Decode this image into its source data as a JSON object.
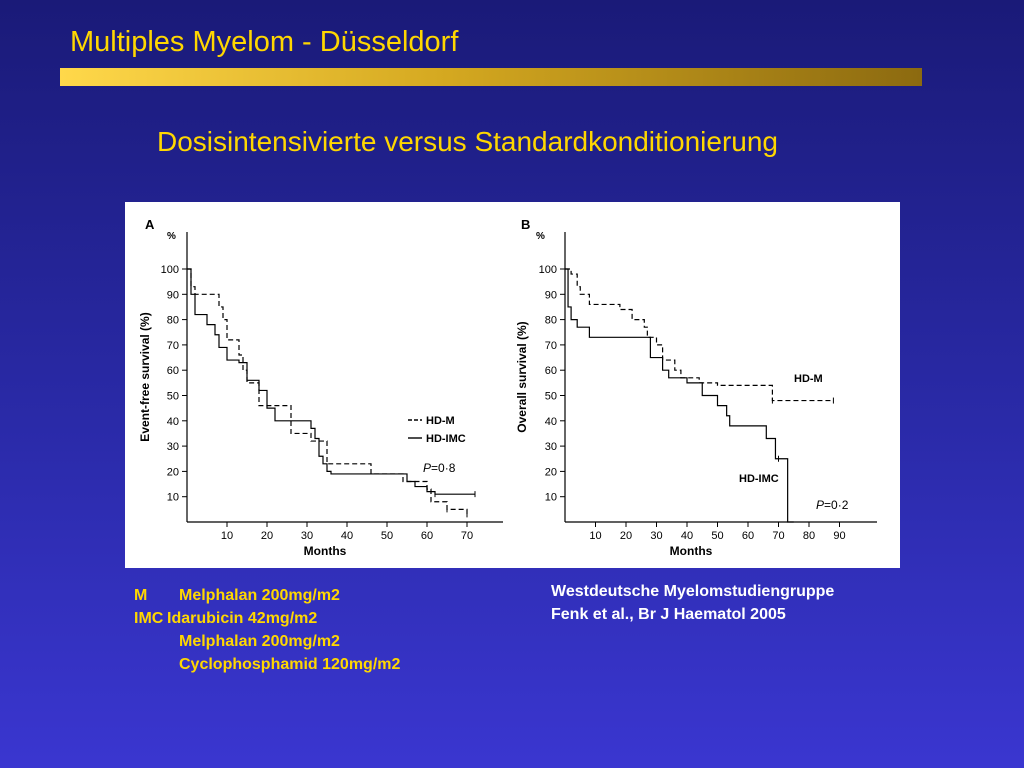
{
  "slide": {
    "title": "Multiples Myelom - Düsseldorf",
    "subtitle": "Dosisintensivierte versus Standardkonditionierung",
    "title_color": "#ffd700",
    "background_color": "#2a2aa8",
    "abbreviations": [
      {
        "key": "M",
        "text": "Melphalan 200mg/m2"
      },
      {
        "key": "IMC",
        "text": "Idarubicin 42mg/m2"
      },
      {
        "key": "",
        "text": "Melphalan 200mg/m2"
      },
      {
        "key": "",
        "text": "Cyclophosphamid 120mg/m2"
      }
    ],
    "reference": {
      "line1": "Westdeutsche Myelomstudiengruppe",
      "line2": "Fenk et al., Br J Haematol 2005"
    }
  },
  "chart_data": [
    {
      "type": "line",
      "panel_label": "A",
      "ylabel": "Event-free survival (%)",
      "y_unit": "%",
      "xlabel": "Months",
      "xlim": [
        0,
        72
      ],
      "ylim": [
        0,
        105
      ],
      "xticks": [
        10,
        20,
        30,
        40,
        50,
        60,
        70
      ],
      "yticks": [
        10,
        20,
        30,
        40,
        50,
        60,
        70,
        80,
        90,
        100
      ],
      "legend": {
        "placement": "right",
        "entries": [
          "HD-M",
          "HD-IMC"
        ]
      },
      "annotation": {
        "p_label": "P",
        "p_value": "=0·8"
      },
      "series": [
        {
          "name": "HD-M",
          "style": "dashed",
          "x": [
            0,
            1,
            2,
            7,
            8,
            9,
            10,
            13,
            14,
            15,
            18,
            24,
            26,
            31,
            35,
            42,
            46,
            54,
            60,
            61,
            65,
            67,
            70
          ],
          "y": [
            100,
            93,
            90,
            90,
            85,
            80,
            72,
            66,
            60,
            55,
            46,
            46,
            35,
            32,
            23,
            23,
            19,
            16,
            13,
            8,
            5,
            5,
            3
          ]
        },
        {
          "name": "HD-IMC",
          "style": "solid",
          "x": [
            0,
            1,
            2,
            5,
            7,
            8,
            10,
            13,
            15,
            18,
            20,
            22,
            27,
            31,
            32,
            33,
            34,
            35,
            36,
            48,
            55,
            57,
            60,
            62,
            66,
            72
          ],
          "y": [
            100,
            90,
            82,
            78,
            74,
            69,
            64,
            63,
            56,
            52,
            45,
            40,
            40,
            37,
            33,
            26,
            23,
            20,
            19,
            19,
            16,
            14,
            12,
            11,
            11,
            11
          ]
        }
      ]
    },
    {
      "type": "line",
      "panel_label": "B",
      "ylabel": "Overall survival (%)",
      "y_unit": "%",
      "xlabel": "Months",
      "xlim": [
        0,
        95
      ],
      "ylim": [
        0,
        105
      ],
      "xticks": [
        10,
        20,
        30,
        40,
        50,
        60,
        70,
        80,
        90
      ],
      "yticks": [
        10,
        20,
        30,
        40,
        50,
        60,
        70,
        80,
        90,
        100
      ],
      "legend": {
        "placement": "inline",
        "entries": [
          "HD-M",
          "HD-IMC"
        ]
      },
      "annotation": {
        "p_label": "P",
        "p_value": "=0·2"
      },
      "series": [
        {
          "name": "HD-M",
          "style": "dashed",
          "x": [
            0,
            2,
            4,
            5,
            8,
            15,
            18,
            22,
            26,
            27,
            30,
            32,
            36,
            38,
            44,
            50,
            58,
            62,
            66,
            68,
            70,
            88
          ],
          "y": [
            100,
            98,
            93,
            90,
            86,
            86,
            84,
            80,
            77,
            73,
            70,
            64,
            60,
            57,
            55,
            54,
            54,
            54,
            54,
            48,
            48,
            48
          ]
        },
        {
          "name": "HD-IMC",
          "style": "solid",
          "x": [
            0,
            1,
            2,
            4,
            8,
            10,
            26,
            28,
            32,
            34,
            40,
            45,
            50,
            53,
            54,
            60,
            65,
            66,
            69,
            70,
            73,
            75
          ],
          "y": [
            100,
            85,
            80,
            77,
            73,
            73,
            73,
            65,
            60,
            57,
            55,
            50,
            46,
            42,
            38,
            38,
            38,
            33,
            25,
            25,
            0,
            0
          ]
        }
      ]
    }
  ]
}
